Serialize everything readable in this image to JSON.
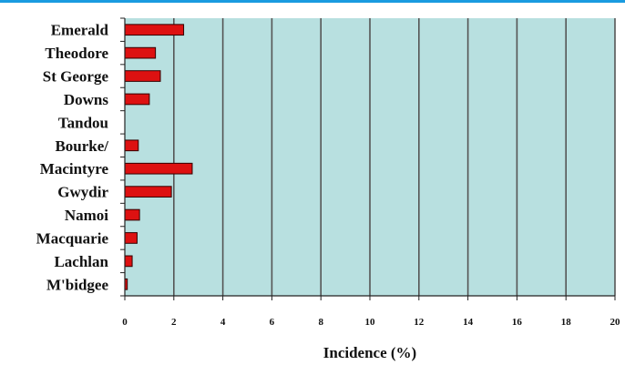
{
  "colors": {
    "accent_rule": "#1a9be0",
    "plot_background": "#b8e0e0",
    "bar_fill": "#dd1111",
    "bar_stroke": "#330000",
    "gridline": "#555555"
  },
  "chart_data": {
    "type": "bar",
    "orientation": "horizontal",
    "title": "",
    "xlabel": "Incidence (%)",
    "ylabel": "",
    "xlim": [
      0,
      20
    ],
    "x_ticks": [
      0,
      2,
      4,
      6,
      8,
      10,
      12,
      14,
      16,
      18,
      20
    ],
    "grid": "vertical",
    "categories": [
      "Emerald",
      "Theodore",
      "St George",
      "Downs",
      "Tandou",
      "Bourke/",
      "Macintyre",
      "Gwydir",
      "Namoi",
      "Macquarie",
      "Lachlan",
      "M'bidgee"
    ],
    "values": [
      2.4,
      1.25,
      1.45,
      1.0,
      0.0,
      0.55,
      2.75,
      1.9,
      0.6,
      0.5,
      0.3,
      0.1
    ]
  }
}
